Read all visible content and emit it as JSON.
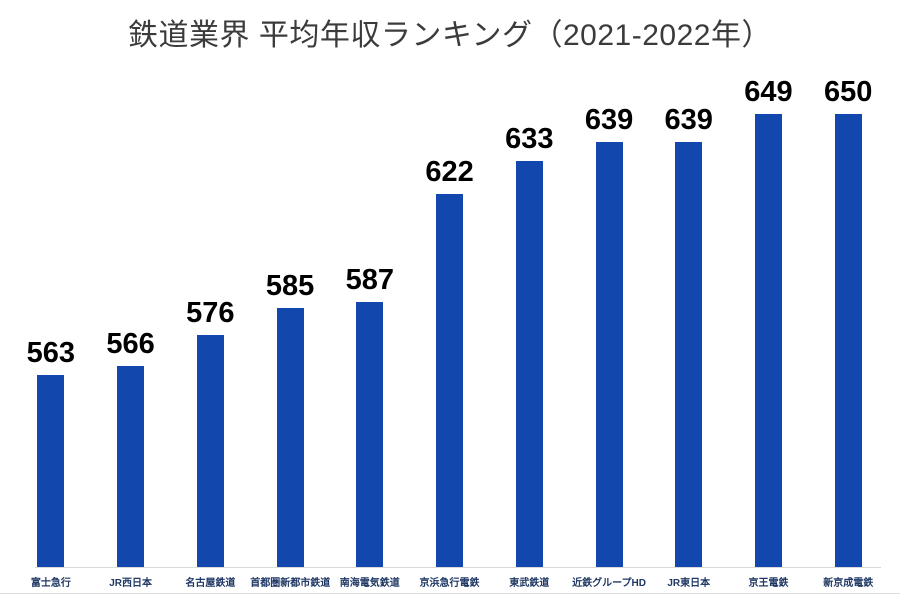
{
  "title": "鉄道業界 平均年収ランキング（2021-2022年）",
  "chart_data": {
    "type": "bar",
    "title": "鉄道業界 平均年収ランキング（2021-2022年）",
    "categories": [
      "富士急行",
      "JR西日本",
      "名古屋鉄道",
      "首都圏新都市鉄道",
      "南海電気鉄道",
      "京浜急行電鉄",
      "東武鉄道",
      "近鉄グループHD",
      "JR東日本",
      "京王電鉄",
      "新京成電鉄"
    ],
    "values": [
      563,
      566,
      576,
      585,
      587,
      622,
      633,
      639,
      639,
      649,
      650
    ],
    "xlabel": "",
    "ylabel": "",
    "ylim": [
      500,
      660
    ],
    "grid": false,
    "legend": false,
    "value_labels_shown": true,
    "colors": {
      "bar": "#1247AE",
      "value_label": "#000000",
      "category_label": "#1F3864",
      "title": "#3B3B3B",
      "axis_line": "#D9D9D9",
      "bottom_line": "#DCDCDC",
      "background": "#FFFFFF"
    }
  }
}
